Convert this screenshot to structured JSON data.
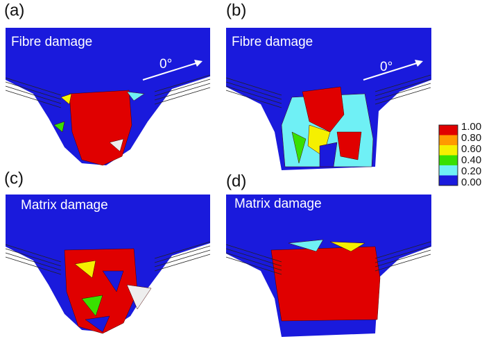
{
  "panels": [
    {
      "label": "(a)",
      "title": "Fibre damage",
      "arrow_label": "0°"
    },
    {
      "label": "(b)",
      "title": "Fibre damage",
      "arrow_label": "0°"
    },
    {
      "label": "(c)",
      "title": "Matrix damage"
    },
    {
      "label": "(d)",
      "title": "Matrix damage"
    }
  ],
  "colorbar": {
    "labels": [
      "1.00",
      "0.80",
      "0.60",
      "0.40",
      "0.20",
      "0.00"
    ]
  }
}
